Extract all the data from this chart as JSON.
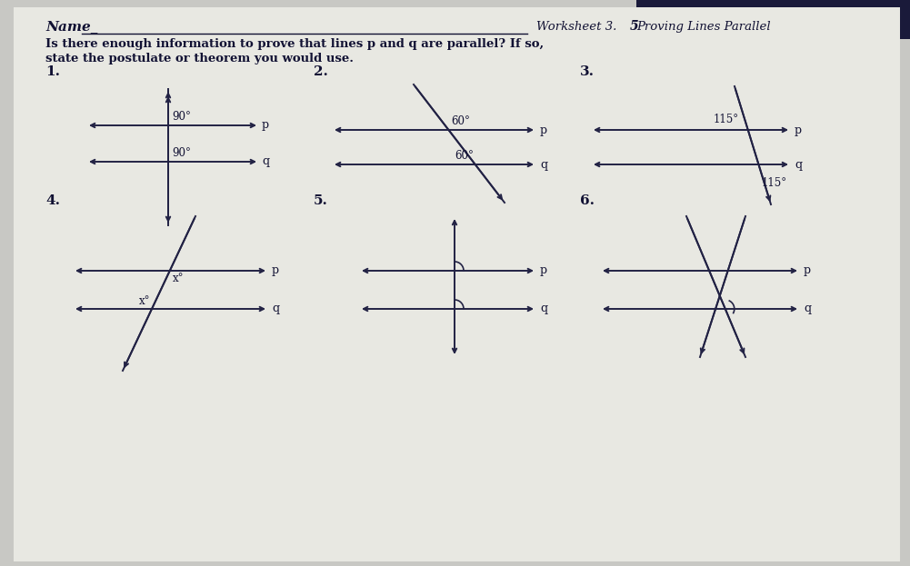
{
  "bg_color_top": "#2a2a4a",
  "paper_color": "#e8e8e4",
  "line_color": "#222244",
  "text_color": "#111133",
  "name_label": "Name_",
  "title": "Worksheet 3.5 Proving Lines Parallel",
  "q_line1": "Is there enough information to prove that lines p and q are parallel? If so,",
  "q_line2": "state the postulate or theorem you would use.",
  "prob_nums": [
    "1.",
    "2.",
    "3.",
    "4.",
    "5.",
    "6."
  ],
  "angle1_p1": "90°",
  "angle2_p1": "90°",
  "angle1_p2": "60°",
  "angle2_p2": "60°",
  "angle1_p3": "115°",
  "angle2_p3": "115°",
  "angle1_p4": "x°",
  "angle2_p4": "x°"
}
